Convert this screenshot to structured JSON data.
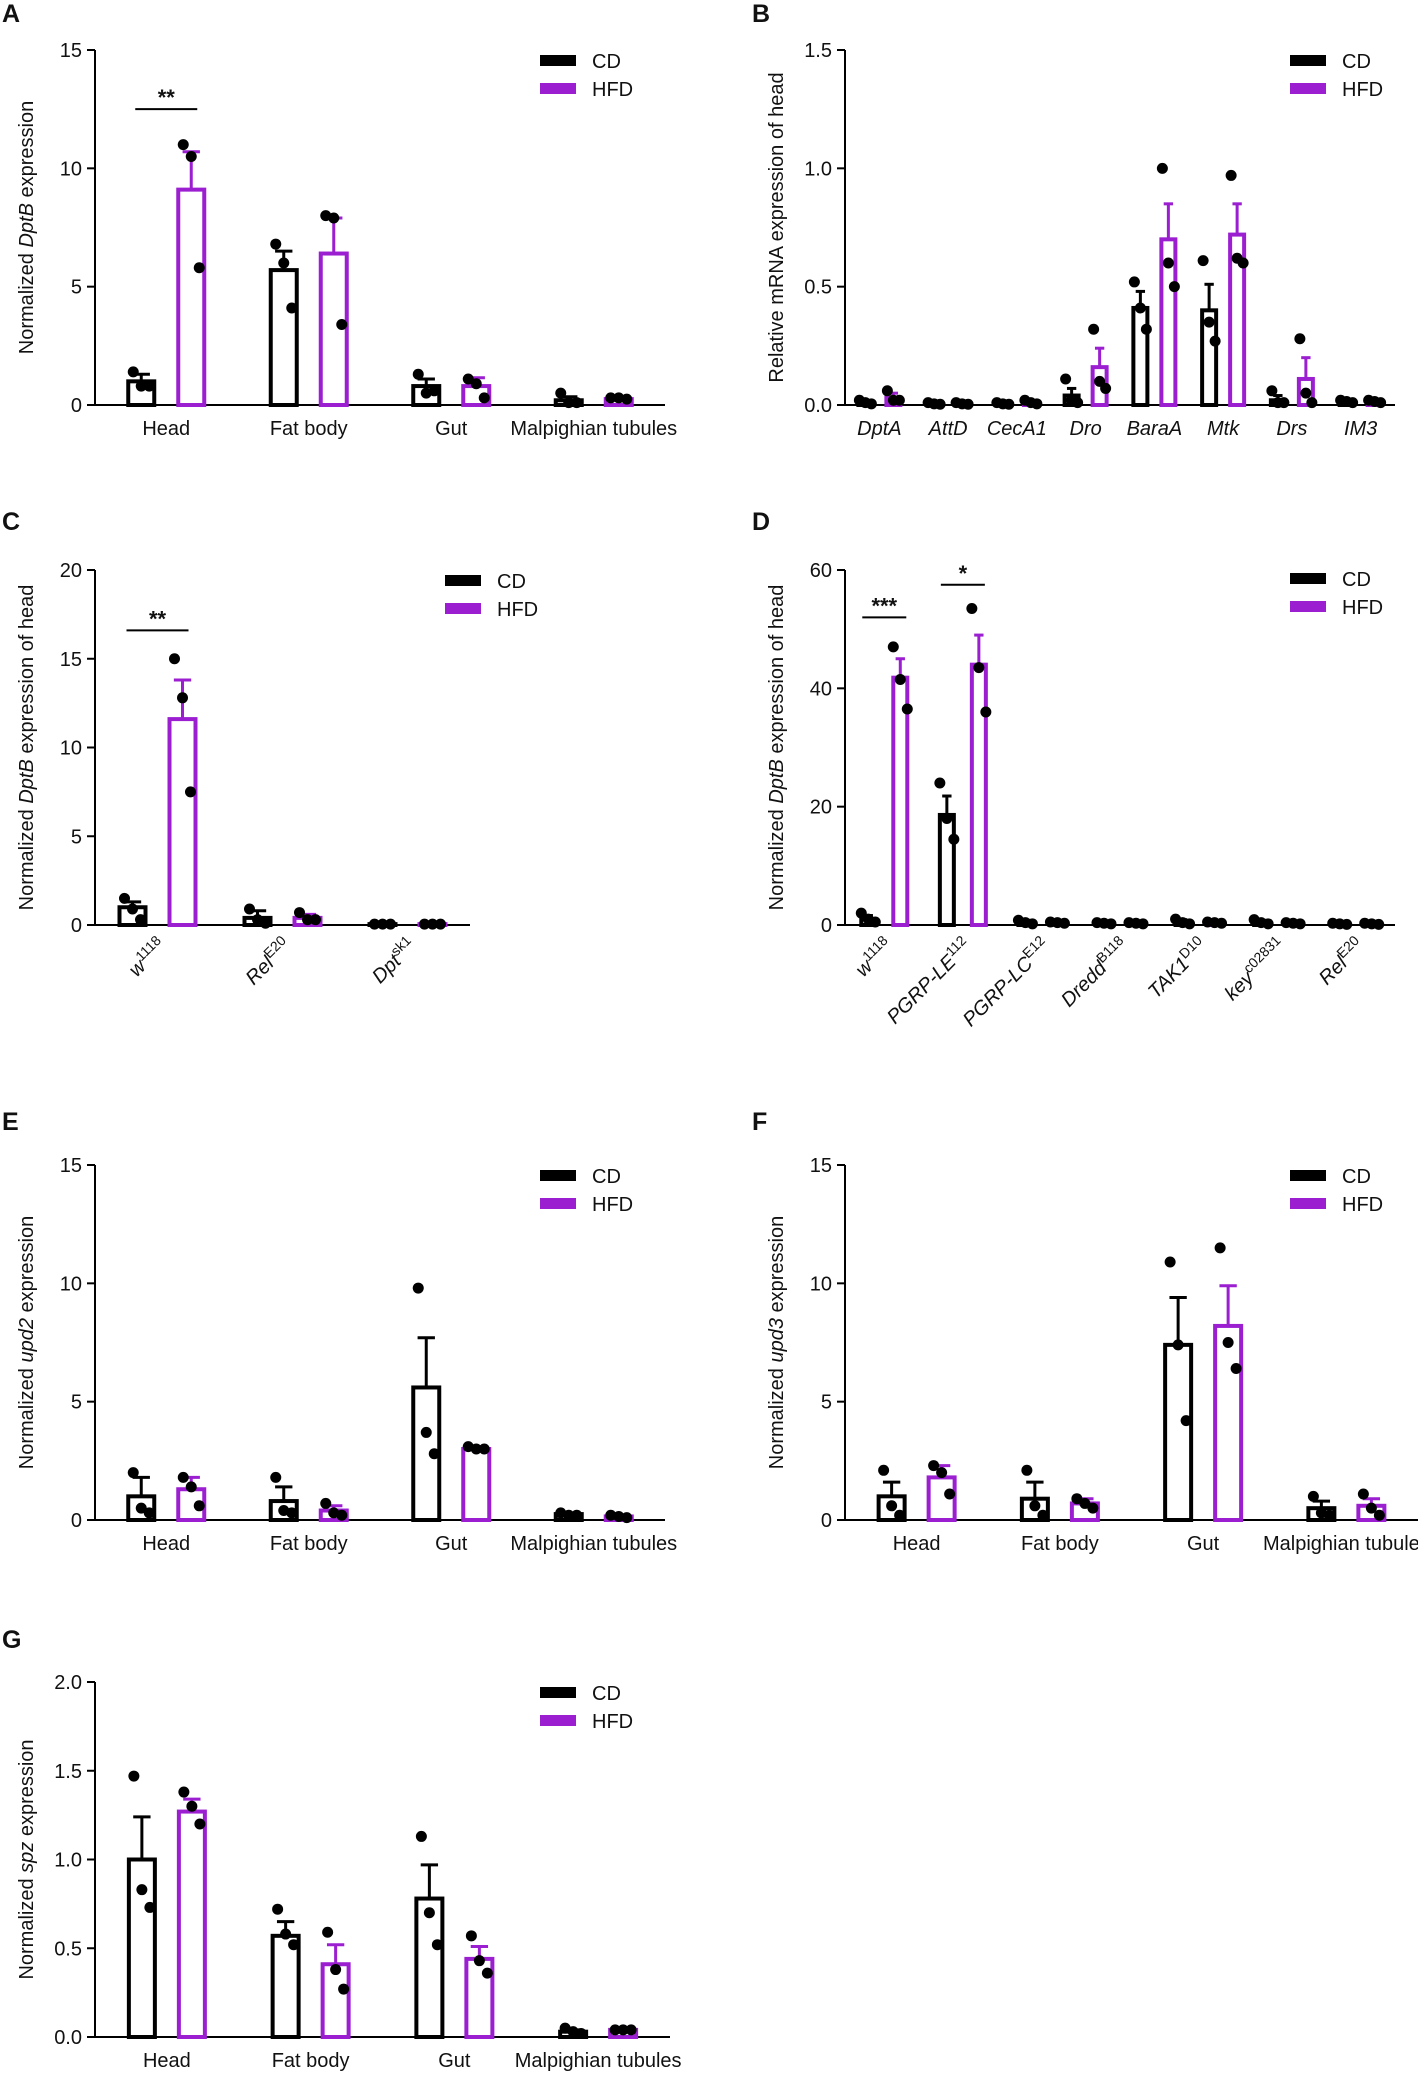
{
  "colors": {
    "CD": "#000000",
    "HFD": "#9b1fd1",
    "dots": "#000000"
  },
  "legend": [
    "CD",
    "HFD"
  ],
  "chart_data": [
    {
      "panel": "A",
      "type": "bar",
      "ylabel_parts": [
        {
          "t": "Normalized "
        },
        {
          "t": "DptB",
          "i": true
        },
        {
          "t": " expression"
        }
      ],
      "ylim": [
        0,
        15
      ],
      "yticks": [
        0,
        5,
        10,
        15
      ],
      "ytick_labels": [
        "0",
        "5",
        "10",
        "15"
      ],
      "categories": [
        {
          "parts": [
            {
              "t": "Head"
            }
          ]
        },
        {
          "parts": [
            {
              "t": "Fat body"
            }
          ]
        },
        {
          "parts": [
            {
              "t": "Gut"
            }
          ]
        },
        {
          "parts": [
            {
              "t": "Malpighian tubules"
            }
          ]
        }
      ],
      "series": [
        {
          "name": "CD",
          "values": [
            1.0,
            5.7,
            0.8,
            0.2
          ],
          "sem": [
            0.3,
            0.8,
            0.3,
            0.15
          ],
          "points": [
            [
              1.4,
              0.8,
              0.8
            ],
            [
              6.8,
              6.0,
              4.1
            ],
            [
              1.3,
              0.5,
              0.6
            ],
            [
              0.5,
              0.1,
              0.1
            ]
          ]
        },
        {
          "name": "HFD",
          "values": [
            9.1,
            6.4,
            0.8,
            0.25
          ],
          "sem": [
            1.6,
            1.5,
            0.35,
            0.1
          ],
          "points": [
            [
              11.0,
              10.5,
              5.8
            ],
            [
              8.0,
              7.9,
              3.4
            ],
            [
              1.1,
              0.9,
              0.3
            ],
            [
              0.3,
              0.3,
              0.25
            ]
          ]
        }
      ],
      "sig": [
        {
          "cat": 0,
          "label": "**",
          "y": 12.5
        }
      ]
    },
    {
      "panel": "B",
      "type": "bar",
      "ylabel_parts": [
        {
          "t": "Relative mRNA expression of head"
        }
      ],
      "ylim": [
        0,
        1.5
      ],
      "yticks": [
        0,
        0.5,
        1.0,
        1.5
      ],
      "ytick_labels": [
        "0.0",
        "0.5",
        "1.0",
        "1.5"
      ],
      "categories": [
        {
          "parts": [
            {
              "t": "DptA",
              "i": true
            }
          ]
        },
        {
          "parts": [
            {
              "t": "AttD",
              "i": true
            }
          ]
        },
        {
          "parts": [
            {
              "t": "CecA1",
              "i": true
            }
          ]
        },
        {
          "parts": [
            {
              "t": "Dro",
              "i": true
            }
          ]
        },
        {
          "parts": [
            {
              "t": "BaraA",
              "i": true
            }
          ]
        },
        {
          "parts": [
            {
              "t": "Mtk",
              "i": true
            }
          ]
        },
        {
          "parts": [
            {
              "t": "Drs",
              "i": true
            }
          ]
        },
        {
          "parts": [
            {
              "t": "IM3",
              "i": true
            }
          ]
        }
      ],
      "series": [
        {
          "name": "CD",
          "values": [
            0.01,
            0.005,
            0.005,
            0.04,
            0.41,
            0.4,
            0.02,
            0.015
          ],
          "sem": [
            0.005,
            0.003,
            0.003,
            0.03,
            0.07,
            0.11,
            0.02,
            0.005
          ],
          "points": [
            [
              0.02,
              0.01,
              0.005
            ],
            [
              0.01,
              0.005,
              0.003
            ],
            [
              0.01,
              0.005,
              0.003
            ],
            [
              0.11,
              0.02,
              0.01
            ],
            [
              0.52,
              0.41,
              0.32
            ],
            [
              0.61,
              0.35,
              0.27
            ],
            [
              0.06,
              0.01,
              0.01
            ],
            [
              0.02,
              0.015,
              0.01
            ]
          ]
        },
        {
          "name": "HFD",
          "values": [
            0.03,
            0.005,
            0.01,
            0.16,
            0.7,
            0.72,
            0.11,
            0.015
          ],
          "sem": [
            0.02,
            0.003,
            0.005,
            0.08,
            0.15,
            0.13,
            0.09,
            0.005
          ],
          "points": [
            [
              0.06,
              0.02,
              0.02
            ],
            [
              0.01,
              0.005,
              0.003
            ],
            [
              0.02,
              0.01,
              0.005
            ],
            [
              0.32,
              0.1,
              0.07
            ],
            [
              1.0,
              0.6,
              0.5
            ],
            [
              0.97,
              0.62,
              0.6
            ],
            [
              0.28,
              0.05,
              0.01
            ],
            [
              0.02,
              0.015,
              0.01
            ]
          ]
        }
      ],
      "sig": []
    },
    {
      "panel": "C",
      "type": "bar",
      "ylabel_parts": [
        {
          "t": "Normalized "
        },
        {
          "t": "DptB",
          "i": true
        },
        {
          "t": " expression of head"
        }
      ],
      "ylim": [
        0,
        20
      ],
      "yticks": [
        0,
        5,
        10,
        15,
        20
      ],
      "ytick_labels": [
        "0",
        "5",
        "10",
        "15",
        "20"
      ],
      "categories": [
        {
          "parts": [
            {
              "t": "w",
              "i": true
            },
            {
              "t": "1118",
              "sup": true
            }
          ]
        },
        {
          "parts": [
            {
              "t": "Rel",
              "i": true
            },
            {
              "t": "E20",
              "sup": true
            }
          ]
        },
        {
          "parts": [
            {
              "t": "Dpt",
              "i": true
            },
            {
              "t": "sk1",
              "sup": true
            }
          ]
        }
      ],
      "series": [
        {
          "name": "CD",
          "values": [
            1.0,
            0.4,
            0.05
          ],
          "sem": [
            0.3,
            0.4,
            0.02
          ],
          "points": [
            [
              1.5,
              0.9,
              0.3
            ],
            [
              0.9,
              0.3,
              0.1
            ],
            [
              0.05,
              0.05,
              0.05
            ]
          ]
        },
        {
          "name": "HFD",
          "values": [
            11.6,
            0.4,
            0.05
          ],
          "sem": [
            2.2,
            0.2,
            0.02
          ],
          "points": [
            [
              15.0,
              12.8,
              7.5
            ],
            [
              0.7,
              0.3,
              0.3
            ],
            [
              0.05,
              0.05,
              0.05
            ]
          ]
        }
      ],
      "sig": [
        {
          "cat": 0,
          "label": "**",
          "y": 16.6
        }
      ]
    },
    {
      "panel": "D",
      "type": "bar",
      "ylabel_parts": [
        {
          "t": "Normalized "
        },
        {
          "t": "DptB",
          "i": true
        },
        {
          "t": " expression of head"
        }
      ],
      "ylim": [
        0,
        60
      ],
      "yticks": [
        0,
        20,
        40,
        60
      ],
      "ytick_labels": [
        "0",
        "20",
        "40",
        "60"
      ],
      "categories": [
        {
          "parts": [
            {
              "t": "w",
              "i": true
            },
            {
              "t": "1118",
              "sup": true
            }
          ]
        },
        {
          "parts": [
            {
              "t": "PGRP-LE",
              "i": true
            },
            {
              "t": "112",
              "sup": true
            }
          ]
        },
        {
          "parts": [
            {
              "t": "PGRP-LC",
              "i": true
            },
            {
              "t": "E12",
              "sup": true
            }
          ]
        },
        {
          "parts": [
            {
              "t": "Dredd",
              "i": true
            },
            {
              "t": "B118",
              "sup": true
            }
          ]
        },
        {
          "parts": [
            {
              "t": "TAK1",
              "i": true
            },
            {
              "t": "D10",
              "sup": true
            }
          ]
        },
        {
          "parts": [
            {
              "t": "key",
              "i": true
            },
            {
              "t": "c02831",
              "sup": true
            }
          ]
        },
        {
          "parts": [
            {
              "t": "Rel",
              "i": true
            },
            {
              "t": "E20",
              "sup": true
            }
          ]
        }
      ],
      "series": [
        {
          "name": "CD",
          "values": [
            1.0,
            18.6,
            0.5,
            0.3,
            0.5,
            0.5,
            0.2
          ],
          "sem": [
            0.6,
            3.2,
            0.3,
            0.1,
            0.4,
            0.3,
            0.1
          ],
          "points": [
            [
              2.0,
              1.0,
              0.5
            ],
            [
              24.0,
              18.0,
              14.5
            ],
            [
              0.8,
              0.4,
              0.2
            ],
            [
              0.4,
              0.3,
              0.2
            ],
            [
              1.0,
              0.4,
              0.2
            ],
            [
              0.9,
              0.4,
              0.2
            ],
            [
              0.3,
              0.2,
              0.1
            ]
          ]
        },
        {
          "name": "HFD",
          "values": [
            41.8,
            44.0,
            0.4,
            0.3,
            0.4,
            0.3,
            0.2
          ],
          "sem": [
            3.2,
            5.0,
            0.2,
            0.1,
            0.2,
            0.1,
            0.1
          ],
          "points": [
            [
              47.0,
              41.5,
              36.5
            ],
            [
              53.5,
              43.5,
              36.0
            ],
            [
              0.5,
              0.4,
              0.3
            ],
            [
              0.4,
              0.3,
              0.2
            ],
            [
              0.5,
              0.4,
              0.3
            ],
            [
              0.4,
              0.3,
              0.2
            ],
            [
              0.3,
              0.2,
              0.1
            ]
          ]
        }
      ],
      "sig": [
        {
          "cat": 0,
          "label": "***",
          "y": 52
        },
        {
          "cat": 1,
          "label": "*",
          "y": 57.5
        }
      ]
    },
    {
      "panel": "E",
      "type": "bar",
      "ylabel_parts": [
        {
          "t": "Normalized "
        },
        {
          "t": "upd2",
          "i": true
        },
        {
          "t": " expression"
        }
      ],
      "ylim": [
        0,
        15
      ],
      "yticks": [
        0,
        5,
        10,
        15
      ],
      "ytick_labels": [
        "0",
        "5",
        "10",
        "15"
      ],
      "categories": [
        {
          "parts": [
            {
              "t": "Head"
            }
          ]
        },
        {
          "parts": [
            {
              "t": "Fat body"
            }
          ]
        },
        {
          "parts": [
            {
              "t": "Gut"
            }
          ]
        },
        {
          "parts": [
            {
              "t": "Malpighian tubules"
            }
          ]
        }
      ],
      "series": [
        {
          "name": "CD",
          "values": [
            1.0,
            0.8,
            5.6,
            0.25
          ],
          "sem": [
            0.8,
            0.6,
            2.1,
            0.05
          ],
          "points": [
            [
              2.0,
              0.5,
              0.3
            ],
            [
              1.8,
              0.4,
              0.3
            ],
            [
              9.8,
              3.7,
              2.8
            ],
            [
              0.3,
              0.2,
              0.2
            ]
          ]
        },
        {
          "name": "HFD",
          "values": [
            1.3,
            0.4,
            3.0,
            0.15
          ],
          "sem": [
            0.5,
            0.2,
            0.1,
            0.05
          ],
          "points": [
            [
              1.8,
              1.4,
              0.6
            ],
            [
              0.7,
              0.3,
              0.2
            ],
            [
              3.1,
              3.0,
              3.0
            ],
            [
              0.2,
              0.15,
              0.1
            ]
          ]
        }
      ],
      "sig": []
    },
    {
      "panel": "F",
      "type": "bar",
      "ylabel_parts": [
        {
          "t": "Normalized "
        },
        {
          "t": "upd3",
          "i": true
        },
        {
          "t": " expression"
        }
      ],
      "ylim": [
        0,
        15
      ],
      "yticks": [
        0,
        5,
        10,
        15
      ],
      "ytick_labels": [
        "0",
        "5",
        "10",
        "15"
      ],
      "categories": [
        {
          "parts": [
            {
              "t": "Head"
            }
          ]
        },
        {
          "parts": [
            {
              "t": "Fat body"
            }
          ]
        },
        {
          "parts": [
            {
              "t": "Gut"
            }
          ]
        },
        {
          "parts": [
            {
              "t": "Malpighian tubules"
            }
          ]
        }
      ],
      "series": [
        {
          "name": "CD",
          "values": [
            1.0,
            0.9,
            7.4,
            0.5
          ],
          "sem": [
            0.6,
            0.7,
            2.0,
            0.3
          ],
          "points": [
            [
              2.1,
              0.6,
              0.2
            ],
            [
              2.1,
              0.6,
              0.2
            ],
            [
              10.9,
              7.4,
              4.2
            ],
            [
              1.0,
              0.3,
              0.2
            ]
          ]
        },
        {
          "name": "HFD",
          "values": [
            1.8,
            0.7,
            8.2,
            0.6
          ],
          "sem": [
            0.5,
            0.2,
            1.7,
            0.3
          ],
          "points": [
            [
              2.3,
              2.0,
              1.1
            ],
            [
              0.9,
              0.7,
              0.5
            ],
            [
              11.5,
              7.5,
              6.4
            ],
            [
              1.1,
              0.5,
              0.2
            ]
          ]
        }
      ],
      "sig": []
    },
    {
      "panel": "G",
      "type": "bar",
      "ylabel_parts": [
        {
          "t": "Normalized "
        },
        {
          "t": "spz",
          "i": true
        },
        {
          "t": " expression"
        }
      ],
      "ylim": [
        0,
        2.0
      ],
      "yticks": [
        0,
        0.5,
        1.0,
        1.5,
        2.0
      ],
      "ytick_labels": [
        "0.0",
        "0.5",
        "1.0",
        "1.5",
        "2.0"
      ],
      "categories": [
        {
          "parts": [
            {
              "t": "Head"
            }
          ]
        },
        {
          "parts": [
            {
              "t": "Fat body"
            }
          ]
        },
        {
          "parts": [
            {
              "t": "Gut"
            }
          ]
        },
        {
          "parts": [
            {
              "t": "Malpighian tubules"
            }
          ]
        }
      ],
      "series": [
        {
          "name": "CD",
          "values": [
            1.0,
            0.57,
            0.78,
            0.03
          ],
          "sem": [
            0.24,
            0.08,
            0.19,
            0.01
          ],
          "points": [
            [
              1.47,
              0.83,
              0.73
            ],
            [
              0.72,
              0.58,
              0.52
            ],
            [
              1.13,
              0.7,
              0.52
            ],
            [
              0.05,
              0.03,
              0.02
            ]
          ]
        },
        {
          "name": "HFD",
          "values": [
            1.27,
            0.41,
            0.44,
            0.04
          ],
          "sem": [
            0.07,
            0.11,
            0.07,
            0.01
          ],
          "points": [
            [
              1.38,
              1.3,
              1.2
            ],
            [
              0.59,
              0.38,
              0.27
            ],
            [
              0.57,
              0.43,
              0.36
            ],
            [
              0.04,
              0.04,
              0.04
            ]
          ]
        }
      ],
      "sig": []
    }
  ]
}
